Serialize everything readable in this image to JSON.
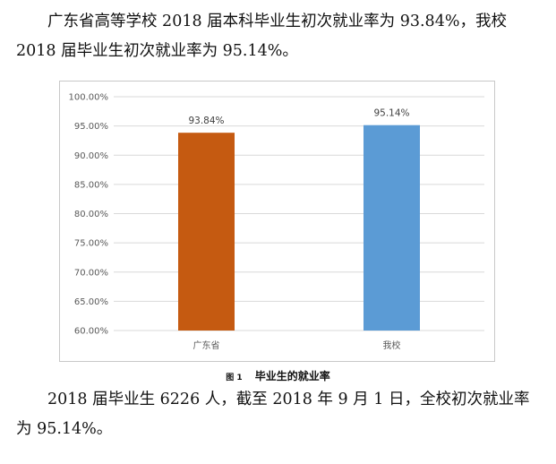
{
  "paragraph1": "广东省高等学校 2018 届本科毕业生初次就业率为 93.84%，我校 2018 届毕业生初次就业率为 95.14%。",
  "figure_caption": {
    "number": "图 1",
    "title": "毕业生的就业率"
  },
  "paragraph2": "2018 届毕业生 6226 人，截至 2018 年 9 月 1 日，全校初次就业率为 95.14%。",
  "chart_data": {
    "type": "bar",
    "categories": [
      "广东省",
      "我校"
    ],
    "values": [
      93.84,
      95.14
    ],
    "value_labels": [
      "93.84%",
      "95.14%"
    ],
    "bar_colors": [
      "#c55a11",
      "#5b9bd5"
    ],
    "ylim": [
      60,
      100
    ],
    "yticks": [
      60,
      65,
      70,
      75,
      80,
      85,
      90,
      95,
      100
    ],
    "ytick_labels": [
      "60.00%",
      "65.00%",
      "70.00%",
      "75.00%",
      "80.00%",
      "85.00%",
      "90.00%",
      "95.00%",
      "100.00%"
    ],
    "grid": true,
    "legend": false,
    "title": "",
    "xlabel": "",
    "ylabel": ""
  }
}
